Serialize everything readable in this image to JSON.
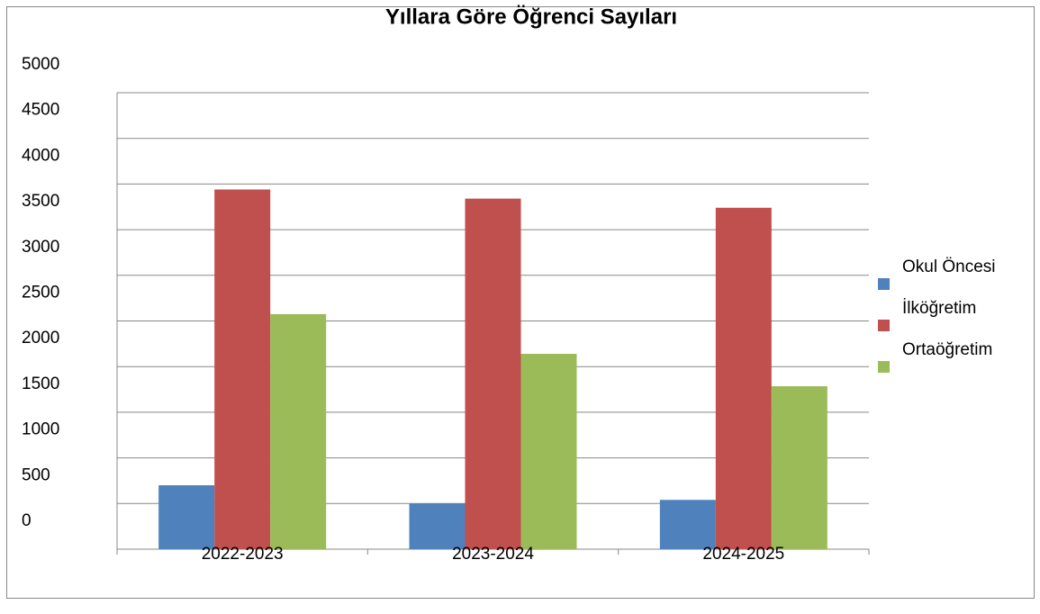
{
  "chart_data": {
    "type": "bar",
    "title": "Yıllara Göre Öğrenci Sayıları",
    "categories": [
      "2022-2023",
      "2023-2024",
      "2024-2025"
    ],
    "series": [
      {
        "name": "Okul Öncesi",
        "color": "#4f81bd",
        "values": [
          700,
          500,
          540
        ]
      },
      {
        "name": "İlköğretim",
        "color": "#c0504d",
        "values": [
          3940,
          3840,
          3740
        ]
      },
      {
        "name": "Ortaöğretim",
        "color": "#9bbb59",
        "values": [
          2575,
          2140,
          1785
        ]
      }
    ],
    "ylim": [
      0,
      5000
    ],
    "yticks": [
      0,
      500,
      1000,
      1500,
      2000,
      2500,
      3000,
      3500,
      4000,
      4500,
      5000
    ],
    "grid": true,
    "legend": "right"
  }
}
